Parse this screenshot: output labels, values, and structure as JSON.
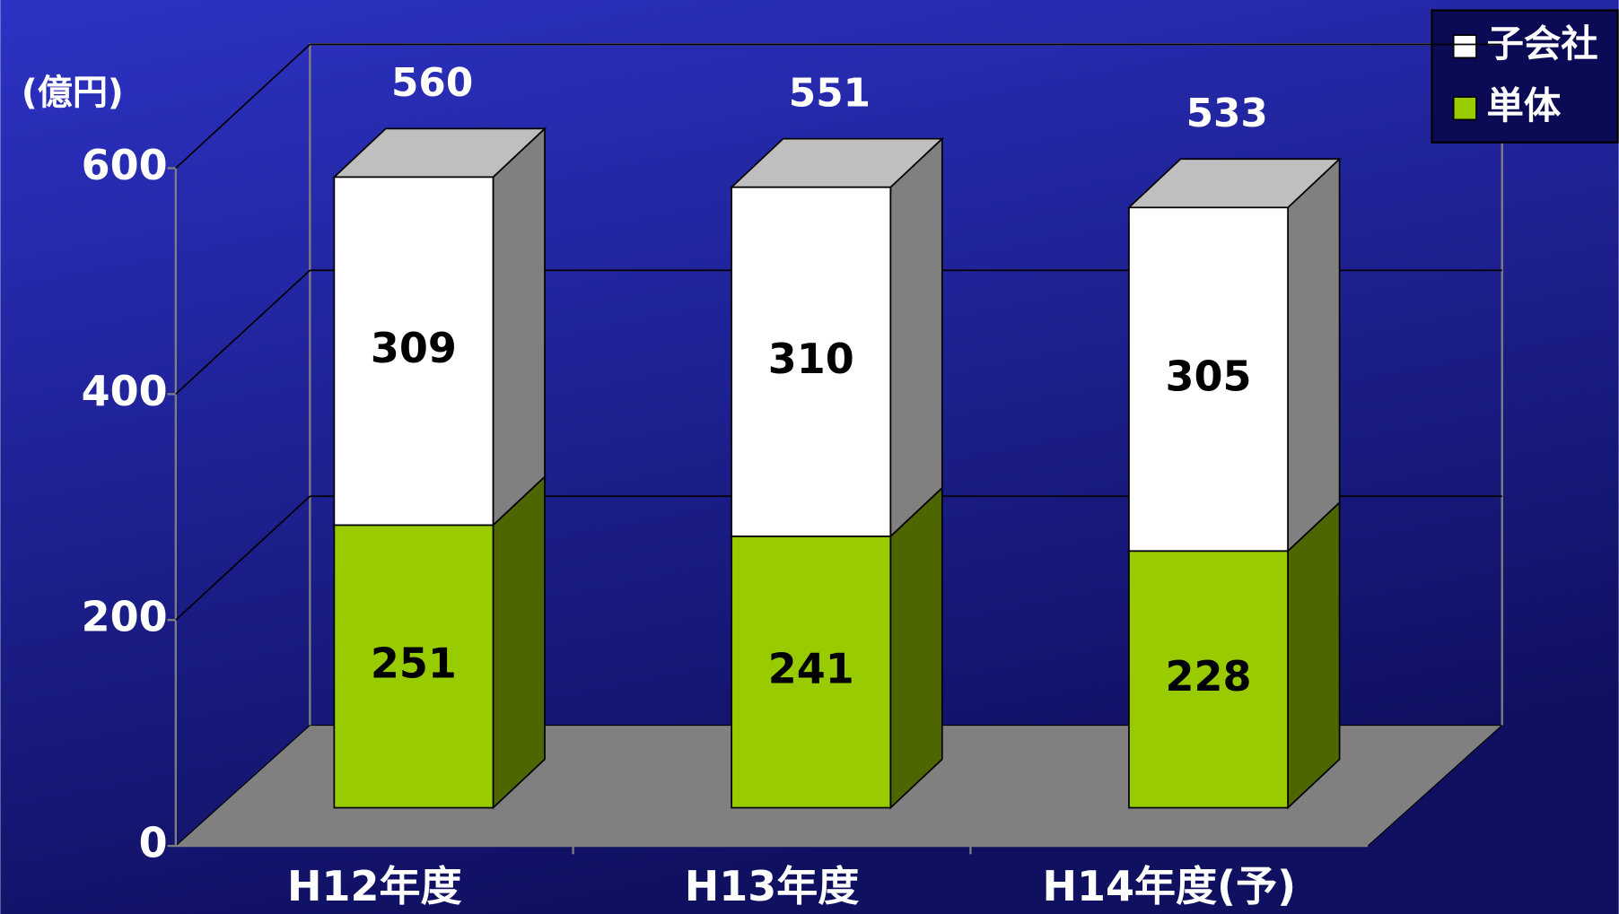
{
  "chart_data": {
    "type": "bar3d_stacked",
    "unit_label": "(億円)",
    "categories": [
      "H12年度",
      "H13年度",
      "H14年度(予)"
    ],
    "series": [
      {
        "name": "単体",
        "color": "#99cc00",
        "values": [
          251,
          241,
          228
        ]
      },
      {
        "name": "子会社",
        "color": "#ffffff",
        "values": [
          309,
          310,
          305
        ]
      }
    ],
    "totals": [
      560,
      551,
      533
    ],
    "ylim": [
      0,
      600
    ],
    "yticks": [
      0,
      200,
      400,
      600
    ],
    "grid": true,
    "legend": "top-right"
  }
}
